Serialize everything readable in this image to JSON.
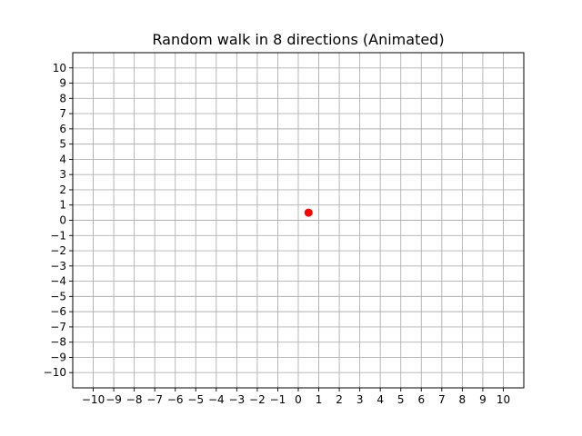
{
  "chart_data": {
    "type": "scatter",
    "title": "Random walk in 8 directions (Animated)",
    "xlabel": "",
    "ylabel": "",
    "xlim": [
      -11,
      11
    ],
    "ylim": [
      -11,
      11
    ],
    "xticks": [
      -10,
      -9,
      -8,
      -7,
      -6,
      -5,
      -4,
      -3,
      -2,
      -1,
      0,
      1,
      2,
      3,
      4,
      5,
      6,
      7,
      8,
      9,
      10
    ],
    "yticks": [
      -10,
      -9,
      -8,
      -7,
      -6,
      -5,
      -4,
      -3,
      -2,
      -1,
      0,
      1,
      2,
      3,
      4,
      5,
      6,
      7,
      8,
      9,
      10
    ],
    "xtick_labels": [
      "−10",
      "−9",
      "−8",
      "−7",
      "−6",
      "−5",
      "−4",
      "−3",
      "−2",
      "−1",
      "0",
      "1",
      "2",
      "3",
      "4",
      "5",
      "6",
      "7",
      "8",
      "9",
      "10"
    ],
    "ytick_labels": [
      "−10",
      "−9",
      "−8",
      "−7",
      "−6",
      "−5",
      "−4",
      "−3",
      "−2",
      "−1",
      "0",
      "1",
      "2",
      "3",
      "4",
      "5",
      "6",
      "7",
      "8",
      "9",
      "10"
    ],
    "grid": true,
    "points": [
      {
        "x": 0.5,
        "y": 0.5
      }
    ],
    "colors": {
      "point": "#ff0000",
      "grid": "#b0b0b0",
      "axes": "#000000"
    }
  }
}
